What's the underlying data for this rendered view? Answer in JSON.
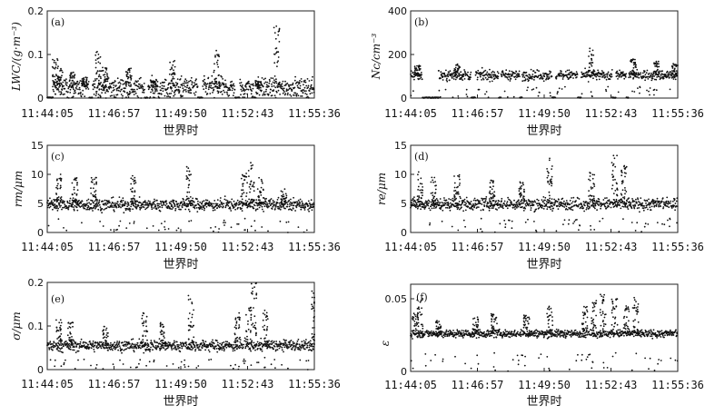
{
  "figure": {
    "x_ticks": [
      "11:44:05",
      "11:46:57",
      "11:49:50",
      "11:52:43",
      "11:55:36"
    ],
    "x_label": "世界时"
  },
  "chart_data": [
    {
      "type": "scatter",
      "panel": "(a)",
      "ylabel": "LWC/(g·m⁻³)",
      "ylim": [
        0,
        0.2
      ],
      "yticks": [
        "0",
        "0.1",
        "0.2"
      ],
      "yvals": [
        0,
        0.1,
        0.2
      ],
      "baseline": 0.025,
      "noise": 0.02,
      "bursts": [
        [
          0.35,
          0.09
        ],
        [
          0.55,
          0.07
        ],
        [
          1.1,
          0.06
        ],
        [
          1.6,
          0.05
        ],
        [
          2.2,
          0.11
        ],
        [
          2.5,
          0.07
        ],
        [
          3.5,
          0.07
        ],
        [
          4.6,
          0.04
        ],
        [
          5.4,
          0.09
        ],
        [
          7.3,
          0.11
        ],
        [
          9.1,
          0.04
        ],
        [
          9.9,
          0.17
        ]
      ],
      "gaps": [
        [
          0.0,
          0.25
        ],
        [
          1.8,
          1.95
        ],
        [
          4.2,
          4.35
        ],
        [
          6.5,
          6.7
        ],
        [
          8.1,
          8.3
        ],
        [
          8.9,
          9.0
        ]
      ]
    },
    {
      "type": "scatter",
      "panel": "(b)",
      "ylabel": "Nc/cm⁻³",
      "ylim": [
        0,
        400
      ],
      "yticks": [
        "0",
        "200",
        "400"
      ],
      "yvals": [
        0,
        200,
        400
      ],
      "baseline": 105,
      "noise": 22,
      "bursts": [
        [
          0.3,
          150
        ],
        [
          2.0,
          160
        ],
        [
          10.6,
          170
        ],
        [
          11.4,
          160
        ],
        [
          7.8,
          230
        ],
        [
          9.6,
          180
        ]
      ],
      "gaps": [
        [
          0.5,
          1.2
        ],
        [
          2.6,
          2.8
        ],
        [
          3.8,
          3.9
        ],
        [
          4.7,
          4.8
        ],
        [
          6.1,
          6.25
        ],
        [
          7.2,
          7.35
        ],
        [
          8.7,
          8.85
        ],
        [
          9.3,
          9.4
        ]
      ]
    },
    {
      "type": "scatter",
      "panel": "(c)",
      "ylabel": "rm/μm",
      "ylim": [
        0,
        15
      ],
      "yticks": [
        "0",
        "5",
        "10",
        "15"
      ],
      "yvals": [
        0,
        5,
        10,
        15
      ],
      "baseline": 4.8,
      "noise": 1.0,
      "bursts": [
        [
          0.5,
          10
        ],
        [
          1.2,
          9.8
        ],
        [
          2.0,
          9.5
        ],
        [
          3.7,
          10.0
        ],
        [
          6.1,
          11.3
        ],
        [
          8.5,
          10.5
        ],
        [
          8.8,
          12.5
        ],
        [
          9.2,
          9.5
        ],
        [
          10.2,
          7.5
        ]
      ],
      "gaps": []
    },
    {
      "type": "scatter",
      "panel": "(d)",
      "ylabel": "re/μm",
      "ylim": [
        0,
        15
      ],
      "yticks": [
        "0",
        "5",
        "10",
        "15"
      ],
      "yvals": [
        0,
        5,
        10,
        15
      ],
      "baseline": 4.9,
      "noise": 1.0,
      "bursts": [
        [
          0.4,
          10.5
        ],
        [
          1.0,
          9.5
        ],
        [
          2.0,
          10.0
        ],
        [
          3.5,
          9.0
        ],
        [
          4.8,
          9.0
        ],
        [
          6.0,
          13.0
        ],
        [
          7.8,
          10.5
        ],
        [
          8.8,
          13.5
        ],
        [
          9.2,
          11.5
        ]
      ],
      "gaps": []
    },
    {
      "type": "scatter",
      "panel": "(e)",
      "ylabel": "σ/μm",
      "ylim": [
        0,
        0.2
      ],
      "yticks": [
        "0",
        "0.1",
        "0.2"
      ],
      "yvals": [
        0,
        0.1,
        0.2
      ],
      "baseline": 0.055,
      "noise": 0.012,
      "bursts": [
        [
          0.5,
          0.12
        ],
        [
          1.0,
          0.11
        ],
        [
          2.5,
          0.1
        ],
        [
          4.2,
          0.13
        ],
        [
          5.0,
          0.11
        ],
        [
          6.2,
          0.17
        ],
        [
          8.2,
          0.13
        ],
        [
          8.7,
          0.15
        ],
        [
          8.9,
          0.2
        ],
        [
          9.4,
          0.14
        ],
        [
          11.5,
          0.18
        ]
      ],
      "gaps": []
    },
    {
      "type": "scatter",
      "panel": "(f)",
      "ylabel": "ε",
      "ylim": [
        0,
        0.06
      ],
      "yticks": [
        "0",
        "0.05"
      ],
      "yvals": [
        0,
        0.05
      ],
      "baseline": 0.026,
      "noise": 0.0025,
      "bursts": [
        [
          0.2,
          0.04
        ],
        [
          0.4,
          0.05
        ],
        [
          1.2,
          0.035
        ],
        [
          2.8,
          0.038
        ],
        [
          3.6,
          0.04
        ],
        [
          5.0,
          0.04
        ],
        [
          6.0,
          0.045
        ],
        [
          7.5,
          0.045
        ],
        [
          7.9,
          0.05
        ],
        [
          8.3,
          0.055
        ],
        [
          8.8,
          0.05
        ],
        [
          9.3,
          0.045
        ],
        [
          9.7,
          0.052
        ]
      ],
      "gaps": []
    }
  ]
}
